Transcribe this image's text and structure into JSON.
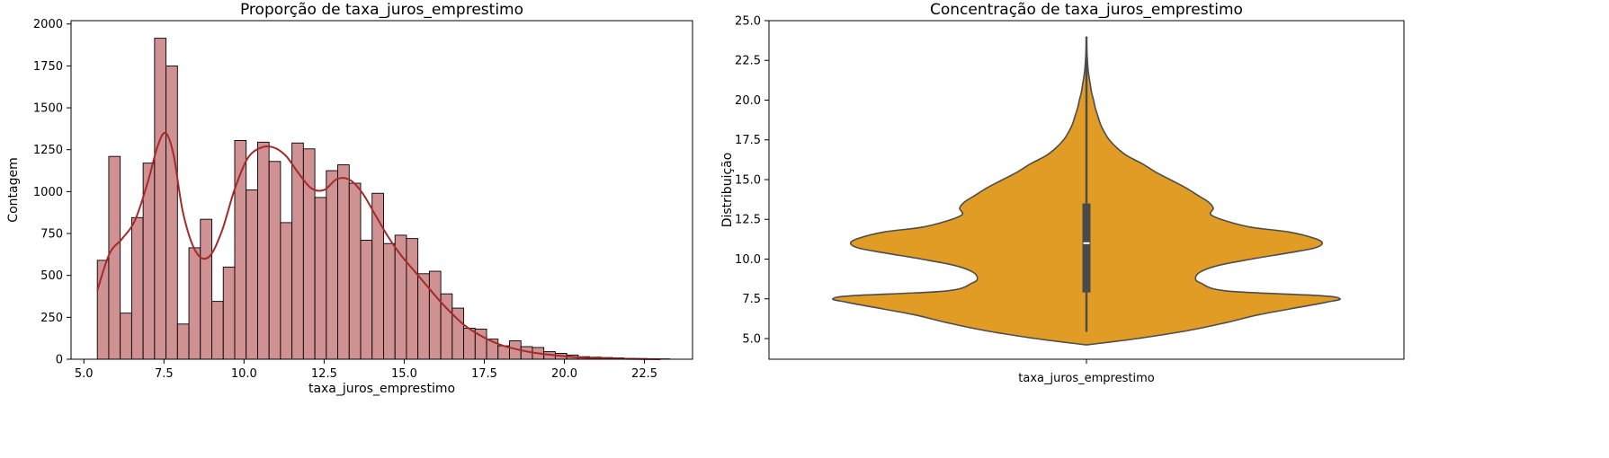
{
  "chart_data": [
    {
      "type": "bar",
      "subtype": "histogram-with-kde",
      "title": "Proporção de taxa_juros_emprestimo",
      "xlabel": "taxa_juros_emprestimo",
      "ylabel": "Contagem",
      "xlim": [
        4.6,
        24.0
      ],
      "ylim": [
        0,
        2020
      ],
      "xticks": [
        "5.0",
        "7.5",
        "10.0",
        "12.5",
        "15.0",
        "17.5",
        "20.0",
        "22.5"
      ],
      "yticks": [
        "0",
        "250",
        "500",
        "750",
        "1000",
        "1250",
        "1500",
        "1750",
        "2000"
      ],
      "grid": false,
      "colors": {
        "bar_fill": "#d09193",
        "bar_edge": "#000000",
        "kde": "#a52a2a"
      },
      "bins": {
        "start": 5.42,
        "width": 0.3574,
        "counts": [
          590,
          1210,
          275,
          845,
          1170,
          1915,
          1750,
          210,
          665,
          835,
          345,
          550,
          1305,
          1010,
          1295,
          1180,
          815,
          1290,
          1255,
          965,
          1125,
          1160,
          1050,
          710,
          990,
          690,
          740,
          720,
          510,
          525,
          390,
          305,
          185,
          180,
          120,
          80,
          110,
          75,
          70,
          45,
          35,
          25,
          15,
          12,
          10,
          8,
          5,
          4,
          3,
          2
        ]
      },
      "kde": {
        "x": [
          5.42,
          5.8,
          6.2,
          6.6,
          7.0,
          7.3,
          7.55,
          7.8,
          8.1,
          8.5,
          8.9,
          9.3,
          9.7,
          10.1,
          10.5,
          10.9,
          11.3,
          11.7,
          12.1,
          12.5,
          12.9,
          13.3,
          13.7,
          14.1,
          14.5,
          14.9,
          15.3,
          15.7,
          16.1,
          16.5,
          16.9,
          17.3,
          17.7,
          18.1,
          18.5,
          19.0,
          19.5,
          20.0,
          20.5,
          21.0,
          21.5,
          22.0,
          22.5,
          23.0
        ],
        "y": [
          410,
          630,
          720,
          830,
          1060,
          1270,
          1350,
          1220,
          870,
          640,
          610,
          760,
          1010,
          1195,
          1260,
          1265,
          1215,
          1110,
          1020,
          1010,
          1075,
          1070,
          990,
          860,
          730,
          620,
          530,
          440,
          350,
          270,
          200,
          150,
          110,
          80,
          60,
          40,
          28,
          18,
          10,
          6,
          4,
          2,
          1,
          0
        ]
      }
    },
    {
      "type": "violin",
      "title": "Concentração de taxa_juros_emprestimo",
      "xlabel": "taxa_juros_emprestimo",
      "ylabel": "Distribuição",
      "ylim": [
        3.7,
        25.0
      ],
      "yticks": [
        "5.0",
        "7.5",
        "10.0",
        "12.5",
        "15.0",
        "17.5",
        "20.0",
        "22.5",
        "25.0"
      ],
      "grid": false,
      "colors": {
        "fill": "#e09c24",
        "edge": "#4d4d4d",
        "box": "#4a4a4a",
        "median": "#ffffff"
      },
      "box": {
        "whisker_low": 5.42,
        "q1": 7.9,
        "median": 11.0,
        "q3": 13.5,
        "whisker_high": 24.0
      },
      "density": {
        "y": [
          4.6,
          5.0,
          5.5,
          6.0,
          6.5,
          7.0,
          7.3,
          7.5,
          7.7,
          8.0,
          8.5,
          8.8,
          9.2,
          9.6,
          10.0,
          10.4,
          10.7,
          11.0,
          11.3,
          11.7,
          12.0,
          12.4,
          12.8,
          13.2,
          13.6,
          14.0,
          14.5,
          15.0,
          15.5,
          16.0,
          16.5,
          17.0,
          17.5,
          18.0,
          18.5,
          19.0,
          19.5,
          20.0,
          20.5,
          21.0,
          21.5,
          22.0,
          23.0,
          24.0
        ],
        "half_width": [
          0.0,
          0.2,
          0.4,
          0.55,
          0.68,
          0.85,
          0.95,
          1.0,
          0.92,
          0.55,
          0.45,
          0.43,
          0.45,
          0.52,
          0.65,
          0.8,
          0.9,
          0.93,
          0.9,
          0.8,
          0.65,
          0.55,
          0.49,
          0.5,
          0.48,
          0.44,
          0.39,
          0.33,
          0.27,
          0.22,
          0.16,
          0.12,
          0.09,
          0.07,
          0.055,
          0.045,
          0.035,
          0.028,
          0.02,
          0.015,
          0.01,
          0.006,
          0.002,
          0.0
        ]
      }
    }
  ]
}
